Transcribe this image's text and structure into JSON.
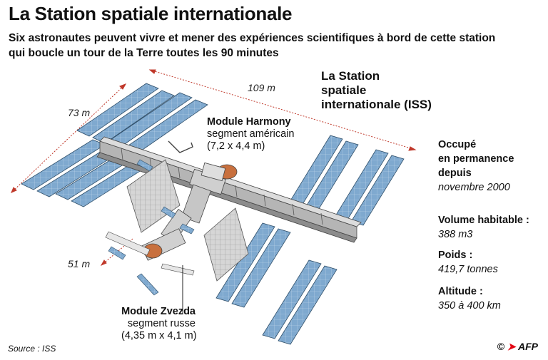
{
  "header": {
    "title": "La Station spatiale internationale",
    "subtitle_line1": "Six astronautes peuvent vivre et mener des expériences scientifiques à bord de cette station",
    "subtitle_line2": "qui boucle un tour de la Terre toutes les 90 minutes"
  },
  "diagram": {
    "iss_label_line1": "La Station",
    "iss_label_line2": "spatiale",
    "iss_label_line3": "internationale (ISS)",
    "dim_length": "109 m",
    "dim_width": "73 m",
    "dim_depth": "51 m",
    "harmony": {
      "name": "Module Harmony",
      "segment": "segment américain",
      "size": "(7,2 x 4,4 m)"
    },
    "zvezda": {
      "name": "Module Zvezda",
      "segment": "segment russe",
      "size": "(4,35 m x 4,1 m)"
    },
    "colors": {
      "panel": "#7fa9cf",
      "panel_grid": "#ffffff",
      "truss": "#9a9a9a",
      "module": "#c9c9c9",
      "copper": "#c8703e",
      "dim_line": "#c0392b"
    }
  },
  "facts": {
    "occupe_line1": "Occupé",
    "occupe_line2": "en permanence",
    "occupe_line3": "depuis",
    "occupe_value": "novembre 2000",
    "volume_label": "Volume habitable :",
    "volume_value": "388 m3",
    "poids_label": "Poids :",
    "poids_value": "419,7 tonnes",
    "altitude_label": "Altitude :",
    "altitude_value": "350 à 400 km"
  },
  "footer": {
    "source": "Source : ISS",
    "copyright": "©",
    "agency": "AFP"
  }
}
